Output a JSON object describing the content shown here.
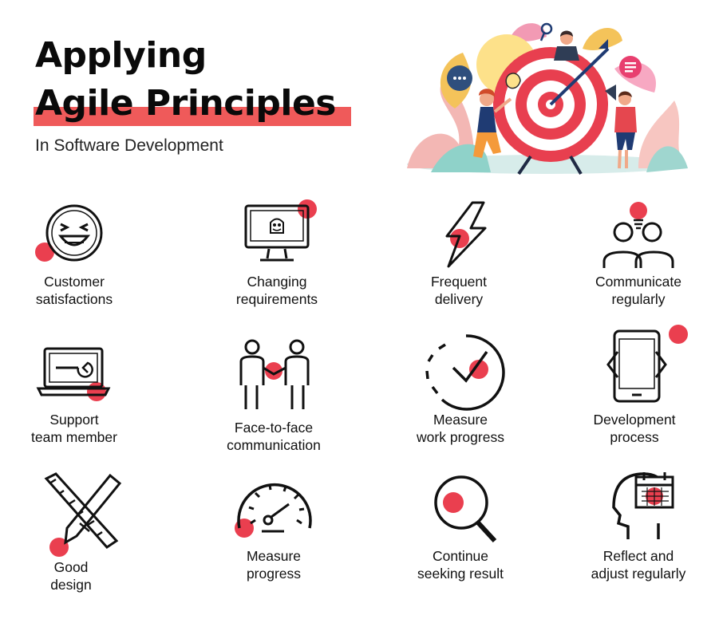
{
  "header": {
    "title_line1": "Applying",
    "title_line2": "Agile Principles",
    "subtitle": "In Software Development"
  },
  "colors": {
    "accent": "#ef5a5a",
    "accent_dot": "#ea3f4f",
    "icon_stroke": "#111111",
    "text": "#111111"
  },
  "items": [
    {
      "icon": "smiley-face-icon",
      "line1": "Customer",
      "line2": "satisfactions"
    },
    {
      "icon": "monitor-icon",
      "line1": "Changing",
      "line2": "requirements"
    },
    {
      "icon": "lightning-bolt-icon",
      "line1": "Frequent",
      "line2": "delivery"
    },
    {
      "icon": "team-lightbulb-icon",
      "line1": "Communicate",
      "line2": "regularly"
    },
    {
      "icon": "laptop-wrench-icon",
      "line1": "Support",
      "line2": "team member"
    },
    {
      "icon": "handshake-people-icon",
      "line1": "Face-to-face",
      "line2": "communication"
    },
    {
      "icon": "progress-check-icon",
      "line1": "Measure",
      "line2": "work progress"
    },
    {
      "icon": "mobile-code-icon",
      "line1": "Development",
      "line2": "process"
    },
    {
      "icon": "ruler-pencil-icon",
      "line1": "Good",
      "line2": "design"
    },
    {
      "icon": "speedometer-icon",
      "line1": "Measure",
      "line2": "progress"
    },
    {
      "icon": "magnifier-icon",
      "line1": "Continue",
      "line2": "seeking result"
    },
    {
      "icon": "head-calendar-icon",
      "line1": "Reflect and",
      "line2": "adjust regularly"
    }
  ]
}
